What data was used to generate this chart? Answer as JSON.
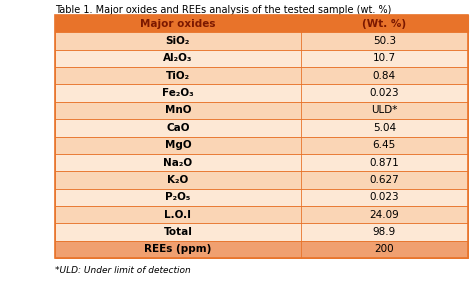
{
  "title": "Table 1. Major oxides and REEs analysis of the tested sample (wt. %)",
  "header": [
    "Major oxides",
    "(Wt. %)"
  ],
  "rows": [
    [
      "SiO₂",
      "50.3"
    ],
    [
      "Al₂O₃",
      "10.7"
    ],
    [
      "TiO₂",
      "0.84"
    ],
    [
      "Fe₂O₃",
      "0.023"
    ],
    [
      "MnO",
      "ULD*"
    ],
    [
      "CaO",
      "5.04"
    ],
    [
      "MgO",
      "6.45"
    ],
    [
      "Na₂O",
      "0.871"
    ],
    [
      "K₂O",
      "0.627"
    ],
    [
      "P₂O₅",
      "0.023"
    ],
    [
      "L.O.I",
      "24.09"
    ],
    [
      "Total",
      "98.9"
    ],
    [
      "REEs (ppm)",
      "200"
    ]
  ],
  "header_bg": "#E8732A",
  "row_bg_light": "#FAD5B5",
  "row_bg_lighter": "#FDE8D5",
  "last_row_bg": "#F0A070",
  "border_color": "#E8732A",
  "header_text_color": "#7B1800",
  "row_text_color": "#000000",
  "title_color": "#000000",
  "footnote": "*ULD: Under limit of detection",
  "title_fontsize": 7.0,
  "header_fontsize": 7.5,
  "cell_fontsize": 7.5,
  "footnote_fontsize": 6.5,
  "col_split": 0.595
}
